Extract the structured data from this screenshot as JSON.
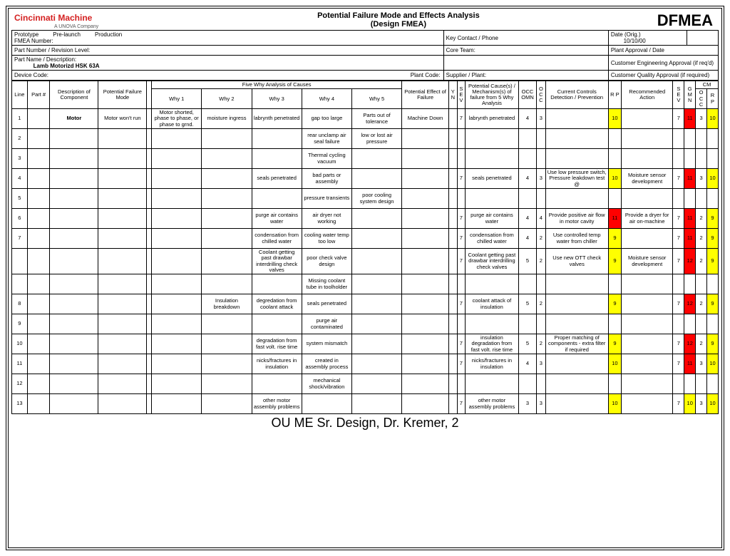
{
  "brand": "Cincinnati Machine",
  "brand_sub": "A UNOVA Company",
  "doc_title1": "Potential Failure Mode and Effects Analysis",
  "doc_title2": "(Design FMEA)",
  "dfmea": "DFMEA",
  "hdr": {
    "prototype": "Prototype",
    "prelaunch": "Pre-launch",
    "production": "Production",
    "fmea_num": "FMEA Number:",
    "key_contact": "Key Contact / Phone",
    "date_orig": "Date (Orig.)",
    "date_val": "10/10/00",
    "part_rev": "Part Number / Revision Level:",
    "core_team": "Core Team:",
    "plant_appr": "Plant Approval / Date",
    "part_desc": "Part Name / Description:",
    "part_name_val": "Lamb Motorizd HSK 63A",
    "cust_eng": "Customer Engineering Approval (if req'd)",
    "device": "Device Code:",
    "plant_code": "Plant Code:",
    "supplier": "Supplier / Plant:",
    "cust_qual": "Customer Quality Approval (if required)"
  },
  "cols": {
    "line": "Line",
    "part": "Part #",
    "desc": "Description of Component",
    "mode": "Potential Failure Mode",
    "five_why": "Five Why Analysis of Causes",
    "why1": "Why 1",
    "why2": "Why 2",
    "why3": "Why 3",
    "why4": "Why 4",
    "why5": "Why 5",
    "effect": "Potential Effect of Failure",
    "yn": "Y N",
    "sev": "S E V",
    "cause": "Potential Cause(s) / Mechanism(s) of failure from 5 Why Analysis",
    "occ": "OCC OMN",
    "occ2": "O C C",
    "ctrl": "Current Controls Detection / Prevention",
    "rp": "R P",
    "action": "Recommended Action",
    "sev2": "S E V",
    "gmn": "G M N",
    "occ3": "O C C",
    "rp2": "R P",
    "cm": "CM"
  },
  "rows": [
    {
      "n": "1",
      "desc": "Motor",
      "mode": "Motor won't run",
      "w1": "Motor shorted, phase to phase, or phase to grnd.",
      "w2": "moisture ingress",
      "w3": "labrynth penetrated",
      "w4": "gap too large",
      "w5": "Parts out of tolerance",
      "eff": "Machine Down",
      "sev": "7",
      "cause": "labrynth penetrated",
      "occ": "4",
      "oc": "3",
      "ctrl": "",
      "rp": "10",
      "rp_c": "y",
      "act": "",
      "s2": "7",
      "g": "11",
      "g_c": "r",
      "o2": "3",
      "r2": "10",
      "r2_c": "y"
    },
    {
      "n": "2",
      "w4": "rear unclamp air seal  failure",
      "w5": "low or lost air pressure"
    },
    {
      "n": "3",
      "w4": "Thermal cycling vacuum"
    },
    {
      "n": "4",
      "w3": "seals penetrated",
      "w4": "bad parts or assembly",
      "sev": "7",
      "cause": "seals penetrated",
      "occ": "4",
      "oc": "3",
      "ctrl": "Use low pressure switch, Pressure leakdown test @",
      "rp": "10",
      "rp_c": "y",
      "act": "Moisture sensor development",
      "s2": "7",
      "g": "11",
      "g_c": "r",
      "o2": "3",
      "r2": "10",
      "r2_c": "y"
    },
    {
      "n": "5",
      "w4": "pressure transients",
      "w5": "poor cooling system design"
    },
    {
      "n": "6",
      "w3": "purge air contains water",
      "w4": "air dryer not working",
      "sev": "7",
      "cause": "purge air contains water",
      "occ": "4",
      "oc": "4",
      "ctrl": "Provide positive air flow in motor cavity",
      "rp": "11",
      "rp_c": "r",
      "act": "Provide a dryer for air on-machine",
      "s2": "7",
      "g": "11",
      "g_c": "r",
      "o2": "2",
      "r2": "9",
      "r2_c": "y"
    },
    {
      "n": "7",
      "w3": "condensation from chilled water",
      "w4": "cooling water temp too low",
      "sev": "7",
      "cause": "condensation from chilled water",
      "occ": "4",
      "oc": "2",
      "ctrl": "Use controlled temp water from chiller",
      "rp": "9",
      "rp_c": "y",
      "s2": "7",
      "g": "11",
      "g_c": "r",
      "o2": "2",
      "r2": "9",
      "r2_c": "y"
    },
    {
      "n": "",
      "w3": "Coolant getting past drawbar interdrilling check valves",
      "w4": "poor check valve design",
      "sev": "7",
      "cause": "Coolant getting past drawbar interdrilling check valves",
      "occ": "5",
      "oc": "2",
      "ctrl": "Use new OTT check valves",
      "rp": "9",
      "rp_c": "y",
      "act": "Moisture sensor development",
      "s2": "7",
      "g": "12",
      "g_c": "r",
      "o2": "2",
      "r2": "9",
      "r2_c": "y"
    },
    {
      "n": "",
      "w4": "Missing coolant tube in toolholder"
    },
    {
      "n": "8",
      "w2": "Insulation breakdown",
      "w3": "degredation from coolant attack",
      "w4": "seals penetrated",
      "sev": "7",
      "cause": "coolant attack of insulation",
      "occ": "5",
      "oc": "2",
      "rp": "9",
      "rp_c": "y",
      "s2": "7",
      "g": "12",
      "g_c": "r",
      "o2": "2",
      "r2": "9",
      "r2_c": "y"
    },
    {
      "n": "9",
      "w4": "purge air contaminated"
    },
    {
      "n": "10",
      "w3": "degradation from fast volt. rise time",
      "w4": "system mismatch",
      "sev": "7",
      "cause": "insulation degradation from fast volt. rise time",
      "occ": "5",
      "oc": "2",
      "ctrl": "Proper matching of components - extra filter if required",
      "rp": "9",
      "rp_c": "y",
      "s2": "7",
      "g": "12",
      "g_c": "r",
      "o2": "2",
      "r2": "9",
      "r2_c": "y"
    },
    {
      "n": "11",
      "w3": "nicks/fractures in insulation",
      "w4": "created in assembly process",
      "sev": "7",
      "cause": "nicks/fractures in insulation",
      "occ": "4",
      "oc": "3",
      "rp": "10",
      "rp_c": "y",
      "s2": "7",
      "g": "11",
      "g_c": "r",
      "o2": "3",
      "r2": "10",
      "r2_c": "y"
    },
    {
      "n": "12",
      "w4": "mechanical shock/vibration"
    },
    {
      "n": "13",
      "w3": "other motor assembly problems",
      "sev": "7",
      "cause": "other motor assembly problems",
      "occ": "3",
      "oc": "3",
      "rp": "10",
      "rp_c": "y",
      "s2": "7",
      "g": "10",
      "g_c": "y",
      "o2": "3",
      "r2": "10",
      "r2_c": "y"
    }
  ],
  "footer": "OU ME Sr. Design, Dr. Kremer, 2",
  "colors": {
    "yellow": "#ffff00",
    "red": "#ff0000",
    "brand": "#d42020"
  }
}
